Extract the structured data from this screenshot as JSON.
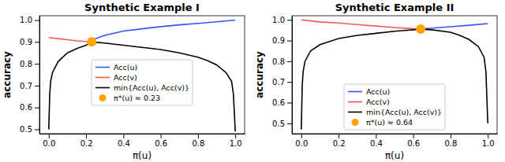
{
  "chart_data": [
    {
      "type": "line",
      "title": "Synthetic Example I",
      "x_label": "π(u)",
      "y_label": "accuracy",
      "xlim": [
        -0.05,
        1.05
      ],
      "ylim": [
        0.48,
        1.02
      ],
      "xticks": [
        {
          "value": 0,
          "label": "0.0"
        },
        0.2,
        0.4,
        0.6,
        0.8,
        {
          "value": 1,
          "label": "1.0"
        }
      ],
      "yticks": [
        0.5,
        0.6,
        0.7,
        0.8,
        0.9,
        {
          "value": 1,
          "label": "1.0"
        }
      ],
      "grid": false,
      "legend": "center",
      "series": [
        {
          "name": "Acc(u)",
          "color": "#3355ff",
          "type": "line",
          "line_style": "solid",
          "x": [
            0.22,
            0.25,
            0.3,
            0.4,
            0.5,
            0.6,
            0.7,
            0.8,
            0.9,
            1.0
          ],
          "values": [
            0.9,
            0.915,
            0.93,
            0.95,
            0.96,
            0.97,
            0.978,
            0.985,
            0.992,
            1.0
          ]
        },
        {
          "name": "Acc(v)",
          "color": "#ff5555",
          "type": "line",
          "line_style": "solid",
          "x": [
            0,
            0.05,
            0.1,
            0.15,
            0.2,
            0.23
          ],
          "values": [
            0.92,
            0.915,
            0.91,
            0.905,
            0.902,
            0.9
          ]
        },
        {
          "name": "min{Acc(u), Acc(v)}",
          "color": "#000000",
          "type": "line",
          "line_style": "solid",
          "x": [
            0,
            0.005,
            0.01,
            0.02,
            0.05,
            0.1,
            0.15,
            0.2,
            0.23,
            0.3,
            0.4,
            0.5,
            0.6,
            0.7,
            0.8,
            0.85,
            0.9,
            0.95,
            0.98,
            0.99,
            1.0
          ],
          "values": [
            0.5,
            0.66,
            0.72,
            0.76,
            0.81,
            0.85,
            0.87,
            0.885,
            0.9,
            0.895,
            0.885,
            0.875,
            0.865,
            0.85,
            0.83,
            0.815,
            0.795,
            0.76,
            0.72,
            0.66,
            0.49
          ]
        },
        {
          "name": "π*(u) ≈ 0.23",
          "color": "#ffa500",
          "type": "scatter",
          "marker": "circle",
          "x": [
            0.23
          ],
          "values": [
            0.9
          ]
        }
      ]
    },
    {
      "type": "line",
      "title": "Synthetic Example II",
      "x_label": "π(u)",
      "y_label": "accuracy",
      "xlim": [
        -0.05,
        1.05
      ],
      "ylim": [
        0.45,
        1.02
      ],
      "xticks": [
        {
          "value": 0,
          "label": "0.0"
        },
        0.2,
        0.4,
        0.6,
        0.8,
        {
          "value": 1,
          "label": "1.0"
        }
      ],
      "yticks": [
        0.5,
        0.6,
        0.7,
        0.8,
        0.9,
        {
          "value": 1,
          "label": "1.0"
        }
      ],
      "grid": false,
      "legend": "lower center",
      "series": [
        {
          "name": "Acc(u)",
          "color": "#3355ff",
          "type": "line",
          "line_style": "solid",
          "x": [
            0.64,
            0.7,
            0.8,
            0.9,
            1.0
          ],
          "values": [
            0.955,
            0.96,
            0.967,
            0.974,
            0.982
          ]
        },
        {
          "name": "Acc(v)",
          "color": "#ff5555",
          "type": "line",
          "line_style": "solid",
          "x": [
            0,
            0.1,
            0.2,
            0.3,
            0.4,
            0.5,
            0.64
          ],
          "values": [
            1.0,
            0.99,
            0.985,
            0.977,
            0.97,
            0.963,
            0.955
          ]
        },
        {
          "name": "min{Acc(u), Acc(v)}",
          "color": "#000000",
          "type": "line",
          "line_style": "solid",
          "x": [
            0,
            0.005,
            0.01,
            0.02,
            0.05,
            0.1,
            0.2,
            0.3,
            0.4,
            0.5,
            0.64,
            0.7,
            0.8,
            0.85,
            0.9,
            0.95,
            0.98,
            0.99,
            1.0
          ],
          "values": [
            0.47,
            0.68,
            0.75,
            0.8,
            0.85,
            0.88,
            0.91,
            0.925,
            0.935,
            0.945,
            0.955,
            0.952,
            0.94,
            0.925,
            0.905,
            0.87,
            0.82,
            0.75,
            0.5
          ]
        },
        {
          "name": "π*(u) ≈ 0.64",
          "color": "#ffa500",
          "type": "scatter",
          "marker": "circle",
          "x": [
            0.64
          ],
          "values": [
            0.955
          ]
        }
      ]
    }
  ]
}
